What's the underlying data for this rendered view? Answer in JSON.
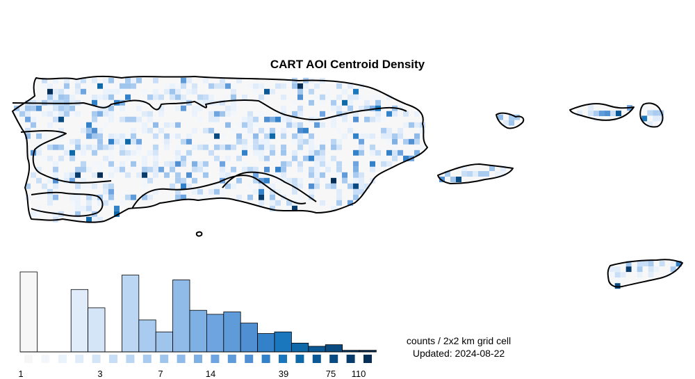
{
  "title": "CART AOI Centroid Density",
  "legend": {
    "caption_line1": "counts / 2x2 km grid cell",
    "caption_line2": "Updated: 2024-08-22",
    "tick_labels": [
      "1",
      "3",
      "7",
      "14",
      "39",
      "75",
      "110"
    ],
    "bins": [
      {
        "color": "#f7f7f7",
        "freq": 1.0
      },
      {
        "color": "#f3f7fc",
        "freq": 0.0
      },
      {
        "color": "#eaf2fb",
        "freq": 0.0
      },
      {
        "color": "#e0ecfa",
        "freq": 0.78
      },
      {
        "color": "#d4e5f8",
        "freq": 0.55
      },
      {
        "color": "#c8def6",
        "freq": 0.0
      },
      {
        "color": "#bad6f3",
        "freq": 0.96
      },
      {
        "color": "#a9cbf0",
        "freq": 0.4
      },
      {
        "color": "#9fc5ed",
        "freq": 0.25
      },
      {
        "color": "#90bbe9",
        "freq": 0.9
      },
      {
        "color": "#7fb0e4",
        "freq": 0.52
      },
      {
        "color": "#6ea5e0",
        "freq": 0.47
      },
      {
        "color": "#5f9ad9",
        "freq": 0.5
      },
      {
        "color": "#4f8fd2",
        "freq": 0.36
      },
      {
        "color": "#3381c9",
        "freq": 0.23
      },
      {
        "color": "#1a77bd",
        "freq": 0.25
      },
      {
        "color": "#0f68a8",
        "freq": 0.11
      },
      {
        "color": "#0b5894",
        "freq": 0.07
      },
      {
        "color": "#094a80",
        "freq": 0.09
      },
      {
        "color": "#073c6c",
        "freq": 0.02
      },
      {
        "color": "#062f58",
        "freq": 0.02
      }
    ]
  },
  "colors": {
    "outline": "#000000",
    "low": "#f2f7fd",
    "high": "#08306b"
  }
}
